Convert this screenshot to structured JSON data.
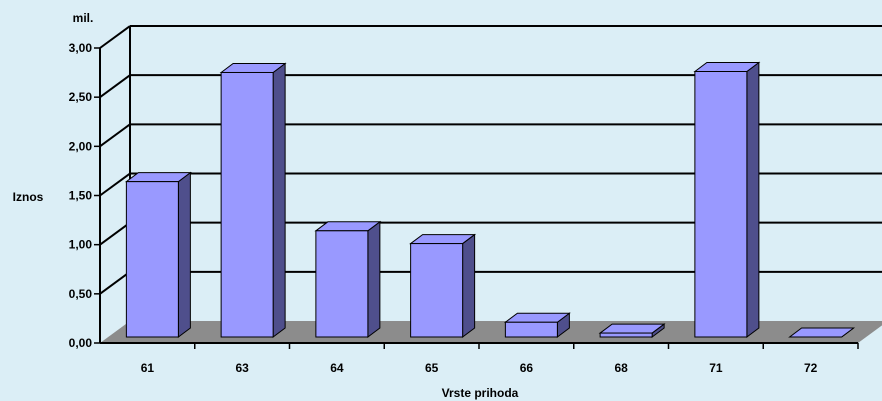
{
  "chart_data": {
    "type": "bar",
    "render": "3d",
    "title": "",
    "xlabel": "Vrste prihoda",
    "ylabel": "Iznos",
    "unit_label": "mil.",
    "categories": [
      "61",
      "63",
      "64",
      "65",
      "66",
      "68",
      "71",
      "72"
    ],
    "values": [
      1.58,
      2.69,
      1.08,
      0.95,
      0.15,
      0.04,
      2.7,
      0.0
    ],
    "ylim": [
      0,
      3
    ],
    "yticks": [
      "0,00",
      "0,50",
      "1,00",
      "1,50",
      "2,00",
      "2,50",
      "3,00"
    ],
    "grid": true,
    "legend": "none",
    "colors": {
      "background": "#dbeef6",
      "bar_front": "#9999ff",
      "bar_top": "#9999ff",
      "bar_side": "#4f4f8c",
      "floor": "#8c8c8c",
      "grid": "#000000"
    }
  }
}
